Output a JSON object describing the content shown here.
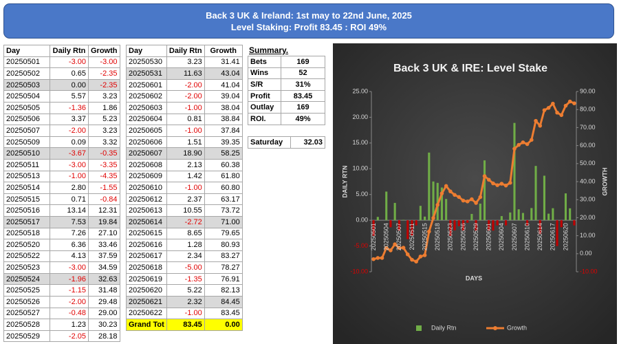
{
  "header": {
    "title": "Back 3 UK & Ireland: 1st may to 22nd June, 2025",
    "subtitle": "Level Staking: Profit 83.45 : ROI 49%"
  },
  "table1": {
    "columns": [
      "Day",
      "Daily Rtn",
      "Growth"
    ],
    "rows": [
      [
        "20250501",
        "-3.00",
        "-3.00"
      ],
      [
        "20250502",
        "0.65",
        "-2.35"
      ],
      [
        "20250503",
        "0.00",
        "-2.35"
      ],
      [
        "20250504",
        "5.57",
        "3.23"
      ],
      [
        "20250505",
        "-1.36",
        "1.86"
      ],
      [
        "20250506",
        "3.37",
        "5.23"
      ],
      [
        "20250507",
        "-2.00",
        "3.23"
      ],
      [
        "20250509",
        "0.09",
        "3.32"
      ],
      [
        "20250510",
        "-3.67",
        "-0.35"
      ],
      [
        "20250511",
        "-3.00",
        "-3.35"
      ],
      [
        "20250513",
        "-1.00",
        "-4.35"
      ],
      [
        "20250514",
        "2.80",
        "-1.55"
      ],
      [
        "20250515",
        "0.71",
        "-0.84"
      ],
      [
        "20250516",
        "13.14",
        "12.31"
      ],
      [
        "20250517",
        "7.53",
        "19.84"
      ],
      [
        "20250518",
        "7.26",
        "27.10"
      ],
      [
        "20250520",
        "6.36",
        "33.46"
      ],
      [
        "20250522",
        "4.13",
        "37.59"
      ],
      [
        "20250523",
        "-3.00",
        "34.59"
      ],
      [
        "20250524",
        "-1.96",
        "32.63"
      ],
      [
        "20250525",
        "-1.15",
        "31.48"
      ],
      [
        "20250526",
        "-2.00",
        "29.48"
      ],
      [
        "20250527",
        "-0.48",
        "29.00"
      ],
      [
        "20250528",
        "1.23",
        "30.23"
      ],
      [
        "20250529",
        "-2.05",
        "28.18"
      ]
    ]
  },
  "table2": {
    "columns": [
      "Day",
      "Daily Rtn",
      "Growth"
    ],
    "rows": [
      [
        "20250530",
        "3.23",
        "31.41"
      ],
      [
        "20250531",
        "11.63",
        "43.04"
      ],
      [
        "20250601",
        "-2.00",
        "41.04"
      ],
      [
        "20250602",
        "-2.00",
        "39.04"
      ],
      [
        "20250603",
        "-1.00",
        "38.04"
      ],
      [
        "20250604",
        "0.81",
        "38.84"
      ],
      [
        "20250605",
        "-1.00",
        "37.84"
      ],
      [
        "20250606",
        "1.51",
        "39.35"
      ],
      [
        "20250607",
        "18.90",
        "58.25"
      ],
      [
        "20250608",
        "2.13",
        "60.38"
      ],
      [
        "20250609",
        "1.42",
        "61.80"
      ],
      [
        "20250610",
        "-1.00",
        "60.80"
      ],
      [
        "20250612",
        "2.37",
        "63.17"
      ],
      [
        "20250613",
        "10.55",
        "73.72"
      ],
      [
        "20250614",
        "-2.72",
        "71.00"
      ],
      [
        "20250615",
        "8.65",
        "79.65"
      ],
      [
        "20250616",
        "1.28",
        "80.93"
      ],
      [
        "20250617",
        "2.34",
        "83.27"
      ],
      [
        "20250618",
        "-5.00",
        "78.27"
      ],
      [
        "20250619",
        "-1.35",
        "76.91"
      ],
      [
        "20250620",
        "5.22",
        "82.13"
      ],
      [
        "20250621",
        "2.32",
        "84.45"
      ],
      [
        "20250622",
        "-1.00",
        "83.45"
      ]
    ],
    "total": [
      "Grand Tot",
      "83.45",
      "0.00"
    ]
  },
  "summary": {
    "title": "Summary.",
    "rows": [
      [
        "Bets",
        "169"
      ],
      [
        "Wins",
        "52"
      ],
      [
        "S/R",
        "31%"
      ],
      [
        "Profit",
        "83.45"
      ],
      [
        "Outlay",
        "169"
      ],
      [
        "ROI.",
        "49%"
      ]
    ],
    "saturday": [
      "Saturday",
      "32.03"
    ]
  },
  "chart_data": {
    "type": "combo",
    "title": "Back 3 UK & IRE: Level Stake",
    "x_label": "DAYS",
    "y_label": "DAILY RTN",
    "y2_label": "GROWTH",
    "categories": [
      "20250501",
      null,
      null,
      "20250504",
      null,
      null,
      "20250507",
      null,
      null,
      "20250511",
      null,
      null,
      "20250515",
      null,
      null,
      "20250518",
      null,
      null,
      "20250523",
      null,
      null,
      "20250526",
      null,
      null,
      "20250529",
      null,
      null,
      "20250601",
      null,
      null,
      "20250604",
      null,
      null,
      "20250607",
      null,
      null,
      "20250610",
      null,
      null,
      "20250614",
      null,
      null,
      "20250617",
      null,
      null,
      "20250620",
      null,
      null
    ],
    "series": [
      {
        "name": "Daily Rtn",
        "type": "bar",
        "color": "#70ad47",
        "negative_color": "#c00000",
        "values": [
          -3.0,
          0.65,
          0.0,
          5.57,
          -1.36,
          3.37,
          -2.0,
          0.09,
          -3.67,
          -3.0,
          -1.0,
          2.8,
          0.71,
          13.14,
          7.53,
          7.26,
          6.36,
          4.13,
          -3.0,
          -1.96,
          -1.15,
          -2.0,
          -0.48,
          1.23,
          -2.05,
          3.23,
          11.63,
          -2.0,
          -2.0,
          -1.0,
          0.81,
          -1.0,
          1.51,
          18.9,
          2.13,
          1.42,
          -1.0,
          2.37,
          10.55,
          -2.72,
          8.65,
          1.28,
          2.34,
          -5.0,
          -1.35,
          5.22,
          2.32,
          -1.0
        ]
      },
      {
        "name": "Growth",
        "type": "line",
        "axis": "y2",
        "color": "#ed7d31",
        "values": [
          -3.0,
          -2.35,
          -2.35,
          3.23,
          1.86,
          5.23,
          3.23,
          3.32,
          -0.35,
          -3.35,
          -4.35,
          -1.55,
          -0.84,
          12.31,
          19.84,
          27.1,
          33.46,
          37.59,
          34.59,
          32.63,
          31.48,
          29.48,
          29.0,
          30.23,
          28.18,
          31.41,
          43.04,
          41.04,
          39.04,
          38.04,
          38.84,
          37.84,
          39.35,
          58.25,
          60.38,
          61.8,
          60.8,
          63.17,
          73.72,
          71.0,
          79.65,
          80.93,
          83.27,
          78.27,
          76.91,
          82.13,
          84.45,
          83.45
        ]
      }
    ],
    "ylim": [
      -10,
      25
    ],
    "yticks": [
      {
        "value": -10,
        "label": "-10.00"
      },
      {
        "value": -5,
        "label": "-5.00"
      },
      {
        "value": 0,
        "label": "0.00"
      },
      {
        "value": 5,
        "label": "5.00"
      },
      {
        "value": 10,
        "label": "10.00"
      },
      {
        "value": 15,
        "label": "15.00"
      },
      {
        "value": 20,
        "label": "20.00"
      },
      {
        "value": 25,
        "label": "25.00"
      }
    ],
    "y2lim": [
      -10,
      90
    ],
    "y2ticks": [
      {
        "value": -10,
        "label": "-10.00"
      },
      {
        "value": 0,
        "label": "0.00"
      },
      {
        "value": 10,
        "label": "10.00"
      },
      {
        "value": 20,
        "label": "20.00"
      },
      {
        "value": 30,
        "label": "30.00"
      },
      {
        "value": 40,
        "label": "40.00"
      },
      {
        "value": 50,
        "label": "50.00"
      },
      {
        "value": 60,
        "label": "60.00"
      },
      {
        "value": 70,
        "label": "70.00"
      },
      {
        "value": 80,
        "label": "80.00"
      },
      {
        "value": 90,
        "label": "90.00"
      }
    ],
    "grid": false,
    "legend": "bottom"
  }
}
